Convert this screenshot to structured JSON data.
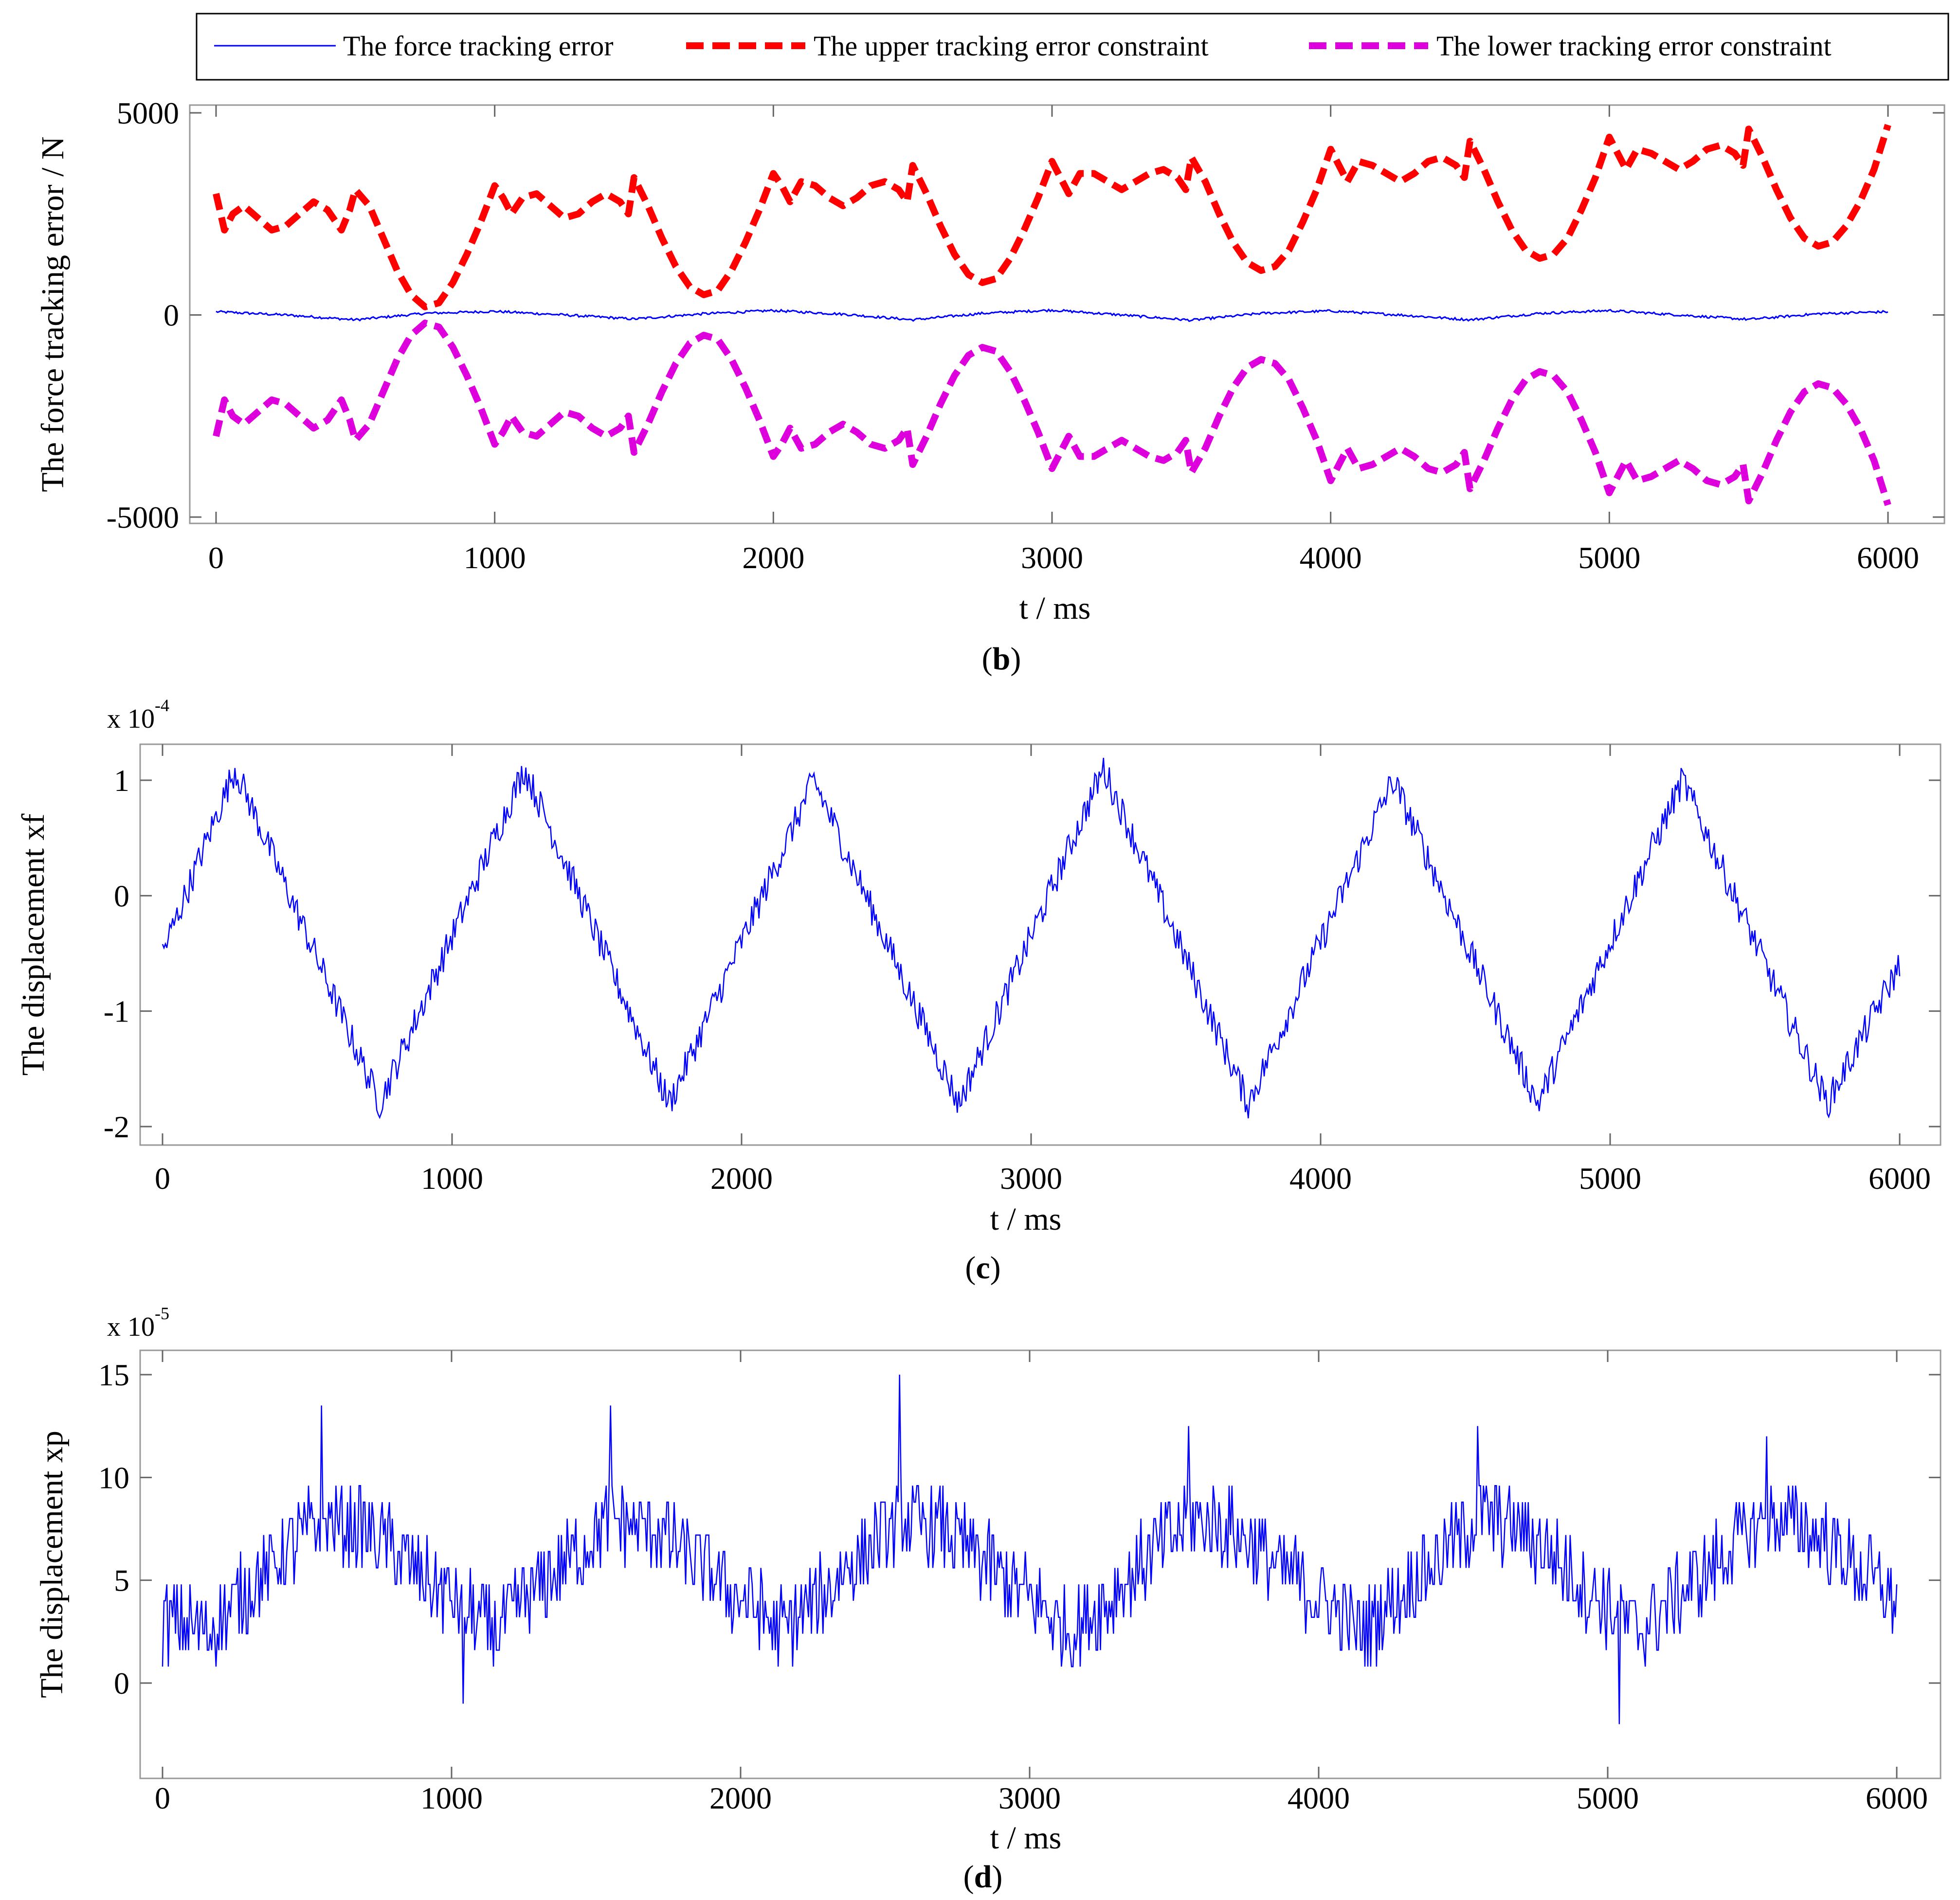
{
  "figure": {
    "panels": [
      "b",
      "c",
      "d"
    ]
  },
  "chart_data": [
    {
      "panel": "b",
      "type": "line",
      "caption": "(b)",
      "caption_letter": "b",
      "title": "",
      "xlabel": "t / ms",
      "ylabel": "The force tracking error / N",
      "xlim": [
        0,
        6000
      ],
      "ylim": [
        -5000,
        5000
      ],
      "xticks": [
        0,
        1000,
        2000,
        3000,
        4000,
        5000,
        6000
      ],
      "yticks": [
        -5000,
        0,
        5000
      ],
      "xtick_labels": [
        "0",
        "1000",
        "2000",
        "3000",
        "4000",
        "5000",
        "6000"
      ],
      "ytick_labels": [
        "-5000",
        "0",
        "5000"
      ],
      "legend": {
        "placement": "top, outside",
        "entries": [
          {
            "label": "The force tracking error",
            "color": "#0000ff",
            "style": "solid"
          },
          {
            "label": "The upper tracking error constraint",
            "color": "#ff0000",
            "style": "dashed"
          },
          {
            "label": "The lower tracking error constraint",
            "color": "#dd00dd",
            "style": "dashed"
          }
        ]
      },
      "series": [
        {
          "name": "The force tracking error",
          "color": "#0000ff",
          "style": "solid",
          "description": "small noisy signal around 0, amplitude roughly 100 N",
          "x": [
            0,
            250,
            500,
            750,
            1000,
            1250,
            1500,
            1750,
            2000,
            2250,
            2500,
            2750,
            3000,
            3250,
            3500,
            3750,
            4000,
            4250,
            4500,
            4750,
            5000,
            5250,
            5500,
            5750,
            6000
          ],
          "y": [
            80,
            0,
            -120,
            40,
            90,
            0,
            -100,
            30,
            110,
            20,
            -120,
            40,
            120,
            0,
            -130,
            40,
            100,
            0,
            -120,
            40,
            110,
            0,
            -110,
            30,
            80
          ]
        },
        {
          "name": "The upper tracking error constraint",
          "color": "#ff0000",
          "style": "dashed",
          "x": [
            0,
            30,
            60,
            100,
            150,
            200,
            250,
            300,
            350,
            400,
            450,
            480,
            500,
            550,
            600,
            650,
            700,
            750,
            800,
            850,
            900,
            950,
            1000,
            1030,
            1060,
            1100,
            1150,
            1200,
            1250,
            1300,
            1350,
            1400,
            1450,
            1480,
            1500,
            1550,
            1600,
            1650,
            1700,
            1750,
            1800,
            1850,
            1900,
            1950,
            2000,
            2030,
            2060,
            2100,
            2150,
            2200,
            2250,
            2300,
            2350,
            2400,
            2450,
            2480,
            2500,
            2550,
            2600,
            2650,
            2700,
            2750,
            2800,
            2850,
            2900,
            2950,
            3000,
            3030,
            3060,
            3100,
            3150,
            3200,
            3250,
            3300,
            3350,
            3400,
            3450,
            3480,
            3500,
            3550,
            3600,
            3650,
            3700,
            3750,
            3800,
            3850,
            3900,
            3950,
            4000,
            4030,
            4060,
            4100,
            4150,
            4200,
            4250,
            4300,
            4350,
            4400,
            4450,
            4480,
            4500,
            4550,
            4600,
            4650,
            4700,
            4750,
            4800,
            4850,
            4900,
            4950,
            5000,
            5030,
            5060,
            5100,
            5150,
            5200,
            5250,
            5300,
            5350,
            5400,
            5450,
            5480,
            5500,
            5550,
            5600,
            5650,
            5700,
            5750,
            5800,
            5850,
            5900,
            5950,
            6000
          ],
          "y": [
            3000,
            2100,
            2500,
            2700,
            2400,
            2100,
            2200,
            2500,
            2800,
            2600,
            2100,
            2600,
            3100,
            2700,
            1900,
            1100,
            500,
            200,
            300,
            800,
            1500,
            2300,
            3200,
            2900,
            2500,
            2900,
            3000,
            2700,
            2400,
            2500,
            2800,
            3000,
            2800,
            2500,
            3400,
            2700,
            1900,
            1200,
            700,
            500,
            600,
            1100,
            1800,
            2600,
            3500,
            3200,
            2800,
            3300,
            3200,
            2900,
            2700,
            2900,
            3200,
            3300,
            3100,
            2800,
            3700,
            3000,
            2200,
            1500,
            1000,
            800,
            900,
            1400,
            2100,
            2900,
            3800,
            3400,
            3000,
            3500,
            3500,
            3300,
            3100,
            3300,
            3500,
            3600,
            3400,
            3100,
            3900,
            3300,
            2500,
            1800,
            1300,
            1100,
            1200,
            1600,
            2300,
            3100,
            4100,
            3700,
            3300,
            3800,
            3700,
            3500,
            3300,
            3500,
            3800,
            3900,
            3700,
            3400,
            4300,
            3600,
            2800,
            2100,
            1600,
            1400,
            1500,
            1900,
            2600,
            3400,
            4400,
            4000,
            3600,
            4100,
            4000,
            3800,
            3600,
            3800,
            4100,
            4200,
            4000,
            3700,
            4600,
            3900,
            3100,
            2400,
            1900,
            1700,
            1800,
            2200,
            2800,
            3600,
            4700
          ]
        },
        {
          "name": "The lower tracking error constraint",
          "color": "#dd00dd",
          "style": "dashed",
          "mirror_of": "The upper tracking error constraint",
          "x": [
            0,
            30,
            60,
            100,
            150,
            200,
            250,
            300,
            350,
            400,
            450,
            480,
            500,
            550,
            600,
            650,
            700,
            750,
            800,
            850,
            900,
            950,
            1000,
            1030,
            1060,
            1100,
            1150,
            1200,
            1250,
            1300,
            1350,
            1400,
            1450,
            1480,
            1500,
            1550,
            1600,
            1650,
            1700,
            1750,
            1800,
            1850,
            1900,
            1950,
            2000,
            2030,
            2060,
            2100,
            2150,
            2200,
            2250,
            2300,
            2350,
            2400,
            2450,
            2480,
            2500,
            2550,
            2600,
            2650,
            2700,
            2750,
            2800,
            2850,
            2900,
            2950,
            3000,
            3030,
            3060,
            3100,
            3150,
            3200,
            3250,
            3300,
            3350,
            3400,
            3450,
            3480,
            3500,
            3550,
            3600,
            3650,
            3700,
            3750,
            3800,
            3850,
            3900,
            3950,
            4000,
            4030,
            4060,
            4100,
            4150,
            4200,
            4250,
            4300,
            4350,
            4400,
            4450,
            4480,
            4500,
            4550,
            4600,
            4650,
            4700,
            4750,
            4800,
            4850,
            4900,
            4950,
            5000,
            5030,
            5060,
            5100,
            5150,
            5200,
            5250,
            5300,
            5350,
            5400,
            5450,
            5480,
            5500,
            5550,
            5600,
            5650,
            5700,
            5750,
            5800,
            5850,
            5900,
            5950,
            6000
          ],
          "y": [
            -3000,
            -2100,
            -2500,
            -2700,
            -2400,
            -2100,
            -2200,
            -2500,
            -2800,
            -2600,
            -2100,
            -2600,
            -3100,
            -2700,
            -1900,
            -1100,
            -500,
            -200,
            -300,
            -800,
            -1500,
            -2300,
            -3200,
            -2900,
            -2500,
            -2900,
            -3000,
            -2700,
            -2400,
            -2500,
            -2800,
            -3000,
            -2800,
            -2500,
            -3400,
            -2700,
            -1900,
            -1200,
            -700,
            -500,
            -600,
            -1100,
            -1800,
            -2600,
            -3500,
            -3200,
            -2800,
            -3300,
            -3200,
            -2900,
            -2700,
            -2900,
            -3200,
            -3300,
            -3100,
            -2800,
            -3700,
            -3000,
            -2200,
            -1500,
            -1000,
            -800,
            -900,
            -1400,
            -2100,
            -2900,
            -3800,
            -3400,
            -3000,
            -3500,
            -3500,
            -3300,
            -3100,
            -3300,
            -3500,
            -3600,
            -3400,
            -3100,
            -3900,
            -3300,
            -2500,
            -1800,
            -1300,
            -1100,
            -1200,
            -1600,
            -2300,
            -3100,
            -4100,
            -3700,
            -3300,
            -3800,
            -3700,
            -3500,
            -3300,
            -3500,
            -3800,
            -3900,
            -3700,
            -3400,
            -4300,
            -3600,
            -2800,
            -2100,
            -1600,
            -1400,
            -1500,
            -1900,
            -2600,
            -3400,
            -4400,
            -4000,
            -3600,
            -4100,
            -4000,
            -3800,
            -3600,
            -3800,
            -4100,
            -4200,
            -4000,
            -3700,
            -4600,
            -3900,
            -3100,
            -2400,
            -1900,
            -1700,
            -1800,
            -2200,
            -2800,
            -3600,
            -4700
          ]
        }
      ]
    },
    {
      "panel": "c",
      "type": "line",
      "caption": "(c)",
      "caption_letter": "c",
      "title": "",
      "xlabel": "t / ms",
      "ylabel": "The displacement xf",
      "scale_base": "x 10",
      "scale_exponent": "-4",
      "xlim": [
        -100,
        6100
      ],
      "ylim": [
        -2.2,
        1.3
      ],
      "xticks": [
        0,
        1000,
        2000,
        3000,
        4000,
        5000,
        6000
      ],
      "yticks": [
        -2,
        -1,
        0,
        1
      ],
      "xtick_labels": [
        "0",
        "1000",
        "2000",
        "3000",
        "4000",
        "5000",
        "6000"
      ],
      "ytick_labels": [
        "-2",
        "-1",
        "0",
        "1"
      ],
      "series": [
        {
          "name": "The displacement xf",
          "color": "#0000ff",
          "style": "solid",
          "description": "noisy triangular wave, period 1000 ms, peaks near 1.1, troughs near -1.8 (x 1e-4)",
          "x": [
            0,
            250,
            750,
            1250,
            1750,
            2250,
            2750,
            3250,
            3750,
            4250,
            4750,
            5250,
            5750,
            6000
          ],
          "y": [
            -0.5,
            1.1,
            -1.8,
            1.1,
            -1.8,
            1.0,
            -1.8,
            1.1,
            -1.8,
            1.0,
            -1.8,
            1.0,
            -1.8,
            -0.6
          ]
        }
      ]
    },
    {
      "panel": "d",
      "type": "line",
      "caption": "(d)",
      "caption_letter": "d",
      "title": "",
      "xlabel": "t / ms",
      "ylabel": "The displacement xp",
      "scale_base": "x 10",
      "scale_exponent": "-5",
      "xlim": [
        -100,
        6100
      ],
      "ylim": [
        -4,
        16
      ],
      "xticks": [
        0,
        1000,
        2000,
        3000,
        4000,
        5000,
        6000
      ],
      "yticks": [
        0,
        5,
        10,
        15
      ],
      "xtick_labels": [
        "0",
        "1000",
        "2000",
        "3000",
        "4000",
        "5000",
        "6000"
      ],
      "ytick_labels": [
        "0",
        "5",
        "10",
        "15"
      ],
      "series": [
        {
          "name": "The displacement xp",
          "color": "#0000ff",
          "style": "solid",
          "description": "noisy, quantized periodic signal oscillating roughly between 2 and 8 (x 1e-5), period 1000 ms, with spikes near 550, 1550, 2550, 3550, 4550, 5550 ms",
          "x": [
            0,
            150,
            550,
            700,
            1150,
            1550,
            1700,
            2150,
            2550,
            2700,
            3150,
            3550,
            3700,
            4150,
            4550,
            4700,
            5100,
            5550,
            5700,
            6000
          ],
          "y": [
            3,
            2.5,
            8,
            7.5,
            2.5,
            8,
            7.5,
            2.5,
            8,
            7.5,
            2.5,
            8,
            7.5,
            2.5,
            8,
            7.5,
            2.5,
            8,
            7.5,
            4
          ],
          "spikes": [
            {
              "x": 550,
              "y": 13.5
            },
            {
              "x": 1550,
              "y": 13.5
            },
            {
              "x": 2550,
              "y": 15
            },
            {
              "x": 3550,
              "y": 12.5
            },
            {
              "x": 4550,
              "y": 12.5
            },
            {
              "x": 5550,
              "y": 12
            },
            {
              "x": 1040,
              "y": -1
            },
            {
              "x": 5040,
              "y": -2
            }
          ]
        }
      ]
    }
  ]
}
